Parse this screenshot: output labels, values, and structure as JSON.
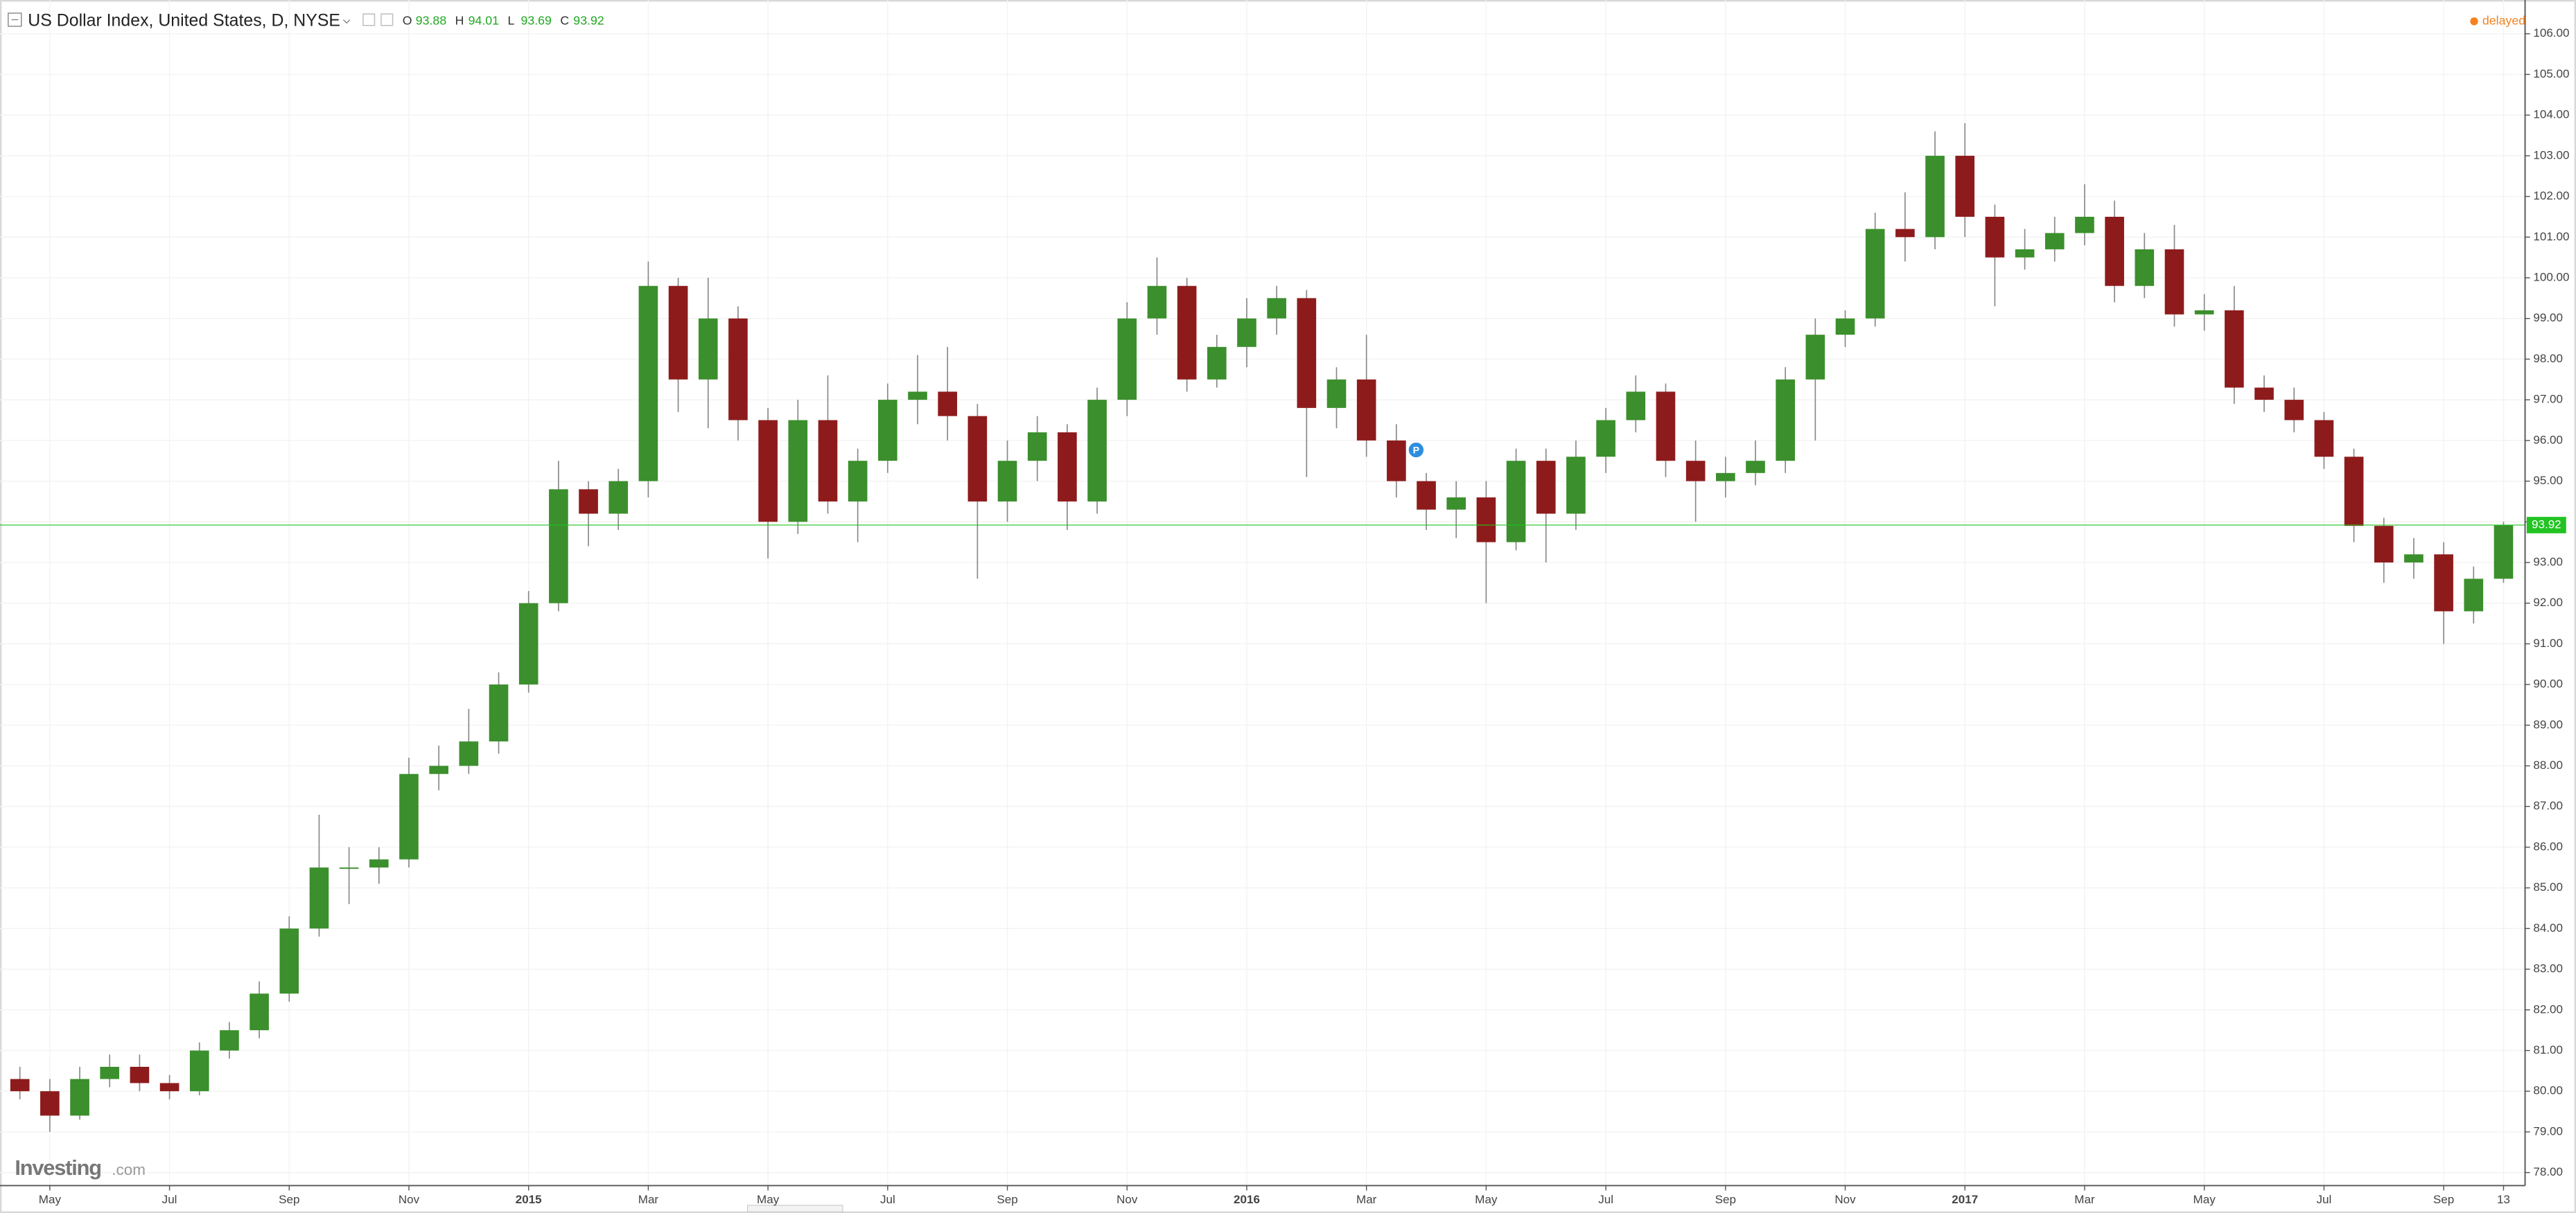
{
  "chart_data": {
    "type": "candlestick",
    "title": "US Dollar Index, United States, D, NYSE",
    "ohlc_legend": [
      {
        "label": "O",
        "value": 93.88
      },
      {
        "label": "H",
        "value": 94.01
      },
      {
        "label": "L",
        "value": 93.69
      },
      {
        "label": "C",
        "value": 93.92
      }
    ],
    "status": "delayed",
    "last_price": 93.92,
    "logo": {
      "brand": "Investing",
      "suffix": ".com"
    },
    "up_color": "#3b8f2c",
    "down_color": "#8e1b1b",
    "wick_color": "#888888",
    "price_line_color": "#22c322",
    "grid": true,
    "categories": [
      null,
      "May",
      null,
      null,
      null,
      "Jul",
      null,
      null,
      null,
      "Sep",
      null,
      null,
      null,
      "Nov",
      null,
      null,
      null,
      "2015",
      null,
      null,
      null,
      "Mar",
      null,
      null,
      null,
      "May",
      null,
      null,
      null,
      "Jul",
      null,
      null,
      null,
      "Sep",
      null,
      null,
      null,
      "Nov",
      null,
      null,
      null,
      "2016",
      null,
      null,
      null,
      "Mar",
      null,
      null,
      null,
      "May",
      null,
      null,
      null,
      "Jul",
      null,
      null,
      null,
      "Sep",
      null,
      null,
      null,
      "Nov",
      null,
      null,
      null,
      "2017",
      null,
      null,
      null,
      "Mar",
      null,
      null,
      null,
      "May",
      null,
      null,
      null,
      "Jul",
      null,
      null,
      null,
      "Sep",
      null,
      "13"
    ],
    "open": [
      80.3,
      80.0,
      79.4,
      80.3,
      80.6,
      80.2,
      80.0,
      81.0,
      81.5,
      82.4,
      84.0,
      85.5,
      85.5,
      85.7,
      87.8,
      88.0,
      88.6,
      90.0,
      92.0,
      94.8,
      94.2,
      95.0,
      99.8,
      97.5,
      99.0,
      96.5,
      94.0,
      96.5,
      94.5,
      95.5,
      97.0,
      97.2,
      96.6,
      94.5,
      95.5,
      96.2,
      94.5,
      97.0,
      99.0,
      99.8,
      97.5,
      98.3,
      99.0,
      99.5,
      96.8,
      97.5,
      96.0,
      95.0,
      94.3,
      94.6,
      93.5,
      95.5,
      94.2,
      95.6,
      96.5,
      97.2,
      95.5,
      95.0,
      95.2,
      95.5,
      97.5,
      98.6,
      99.0,
      101.2,
      101.0,
      103.0,
      101.5,
      100.5,
      100.7,
      101.1,
      101.5,
      99.8,
      100.7,
      99.1,
      99.2,
      97.3,
      97.0,
      96.5,
      95.6,
      93.9,
      93.0,
      93.2,
      91.8,
      92.6
    ],
    "high": [
      80.6,
      80.3,
      80.6,
      80.9,
      80.9,
      80.4,
      81.2,
      81.7,
      82.7,
      84.3,
      86.8,
      86.0,
      86.0,
      88.2,
      88.5,
      89.4,
      90.3,
      92.3,
      95.5,
      95.0,
      95.3,
      100.4,
      100.0,
      100.0,
      99.3,
      96.8,
      97.0,
      97.6,
      95.8,
      97.4,
      98.1,
      98.3,
      96.9,
      96.0,
      96.6,
      96.4,
      97.3,
      99.4,
      100.5,
      100.0,
      98.6,
      99.5,
      99.8,
      99.7,
      97.8,
      98.6,
      96.4,
      95.2,
      95.0,
      95.0,
      95.8,
      95.8,
      96.0,
      96.8,
      97.6,
      97.4,
      96.0,
      95.6,
      96.0,
      97.8,
      99.0,
      99.2,
      101.6,
      102.1,
      103.6,
      103.8,
      101.8,
      101.2,
      101.5,
      102.3,
      101.9,
      101.1,
      101.3,
      99.6,
      99.8,
      97.6,
      97.3,
      96.7,
      95.8,
      94.1,
      93.6,
      93.5,
      92.9,
      94.0
    ],
    "low": [
      79.8,
      79.0,
      79.3,
      80.1,
      80.0,
      79.8,
      79.9,
      80.8,
      81.3,
      82.2,
      83.8,
      84.6,
      85.1,
      85.5,
      87.4,
      87.8,
      88.3,
      89.8,
      91.8,
      93.4,
      93.8,
      94.6,
      96.7,
      96.3,
      96.0,
      93.1,
      93.7,
      94.2,
      93.5,
      95.2,
      96.4,
      96.0,
      92.6,
      94.0,
      95.0,
      93.8,
      94.2,
      96.6,
      98.6,
      97.2,
      97.3,
      97.8,
      98.6,
      95.1,
      96.3,
      95.6,
      94.6,
      93.8,
      93.6,
      92.0,
      93.3,
      93.0,
      93.8,
      95.2,
      96.2,
      95.1,
      94.0,
      94.6,
      94.9,
      95.2,
      96.0,
      98.3,
      98.8,
      100.4,
      100.7,
      101.0,
      99.3,
      100.2,
      100.4,
      100.8,
      99.4,
      99.5,
      98.8,
      98.7,
      96.9,
      96.7,
      96.2,
      95.3,
      93.5,
      92.5,
      92.6,
      91.0,
      91.5,
      92.5
    ],
    "close": [
      80.0,
      79.4,
      80.3,
      80.6,
      80.2,
      80.0,
      81.0,
      81.5,
      82.4,
      84.0,
      85.5,
      85.5,
      85.7,
      87.8,
      88.0,
      88.6,
      90.0,
      92.0,
      94.8,
      94.2,
      95.0,
      99.8,
      97.5,
      99.0,
      96.5,
      94.0,
      96.5,
      94.5,
      95.5,
      97.0,
      97.2,
      96.6,
      94.5,
      95.5,
      96.2,
      94.5,
      97.0,
      99.0,
      99.8,
      97.5,
      98.3,
      99.0,
      99.5,
      96.8,
      97.5,
      96.0,
      95.0,
      94.3,
      94.6,
      93.5,
      95.5,
      94.2,
      95.6,
      96.5,
      97.2,
      95.5,
      95.0,
      95.2,
      95.5,
      97.5,
      98.6,
      99.0,
      101.2,
      101.0,
      103.0,
      101.5,
      100.5,
      100.7,
      101.1,
      101.5,
      99.8,
      100.7,
      99.1,
      99.2,
      97.3,
      97.0,
      96.5,
      95.6,
      93.9,
      93.0,
      93.2,
      91.8,
      92.6,
      93.92
    ],
    "ylim": [
      77.68,
      106.83
    ],
    "yticks": [
      {
        "value": 78,
        "label": "78.00"
      },
      {
        "value": 79,
        "label": "79.00"
      },
      {
        "value": 80,
        "label": "80.00"
      },
      {
        "value": 81,
        "label": "81.00"
      },
      {
        "value": 82,
        "label": "82.00"
      },
      {
        "value": 83,
        "label": "83.00"
      },
      {
        "value": 84,
        "label": "84.00"
      },
      {
        "value": 85,
        "label": "85.00"
      },
      {
        "value": 86,
        "label": "86.00"
      },
      {
        "value": 87,
        "label": "87.00"
      },
      {
        "value": 88,
        "label": "88.00"
      },
      {
        "value": 89,
        "label": "89.00"
      },
      {
        "value": 90,
        "label": "90.00"
      },
      {
        "value": 91,
        "label": "91.00"
      },
      {
        "value": 92,
        "label": "92.00"
      },
      {
        "value": 93,
        "label": "93.00"
      },
      {
        "value": 94,
        "label": "94.00"
      },
      {
        "value": 95,
        "label": "95.00"
      },
      {
        "value": 96,
        "label": "96.00"
      },
      {
        "value": 97,
        "label": "97.00"
      },
      {
        "value": 98,
        "label": "98.00"
      },
      {
        "value": 99,
        "label": "99.00"
      },
      {
        "value": 100,
        "label": "100.00"
      },
      {
        "value": 101,
        "label": "101.00"
      },
      {
        "value": 102,
        "label": "102.00"
      },
      {
        "value": 103,
        "label": "103.00"
      },
      {
        "value": 104,
        "label": "104.00"
      },
      {
        "value": 105,
        "label": "105.00"
      },
      {
        "value": 106,
        "label": "106.00"
      }
    ]
  }
}
